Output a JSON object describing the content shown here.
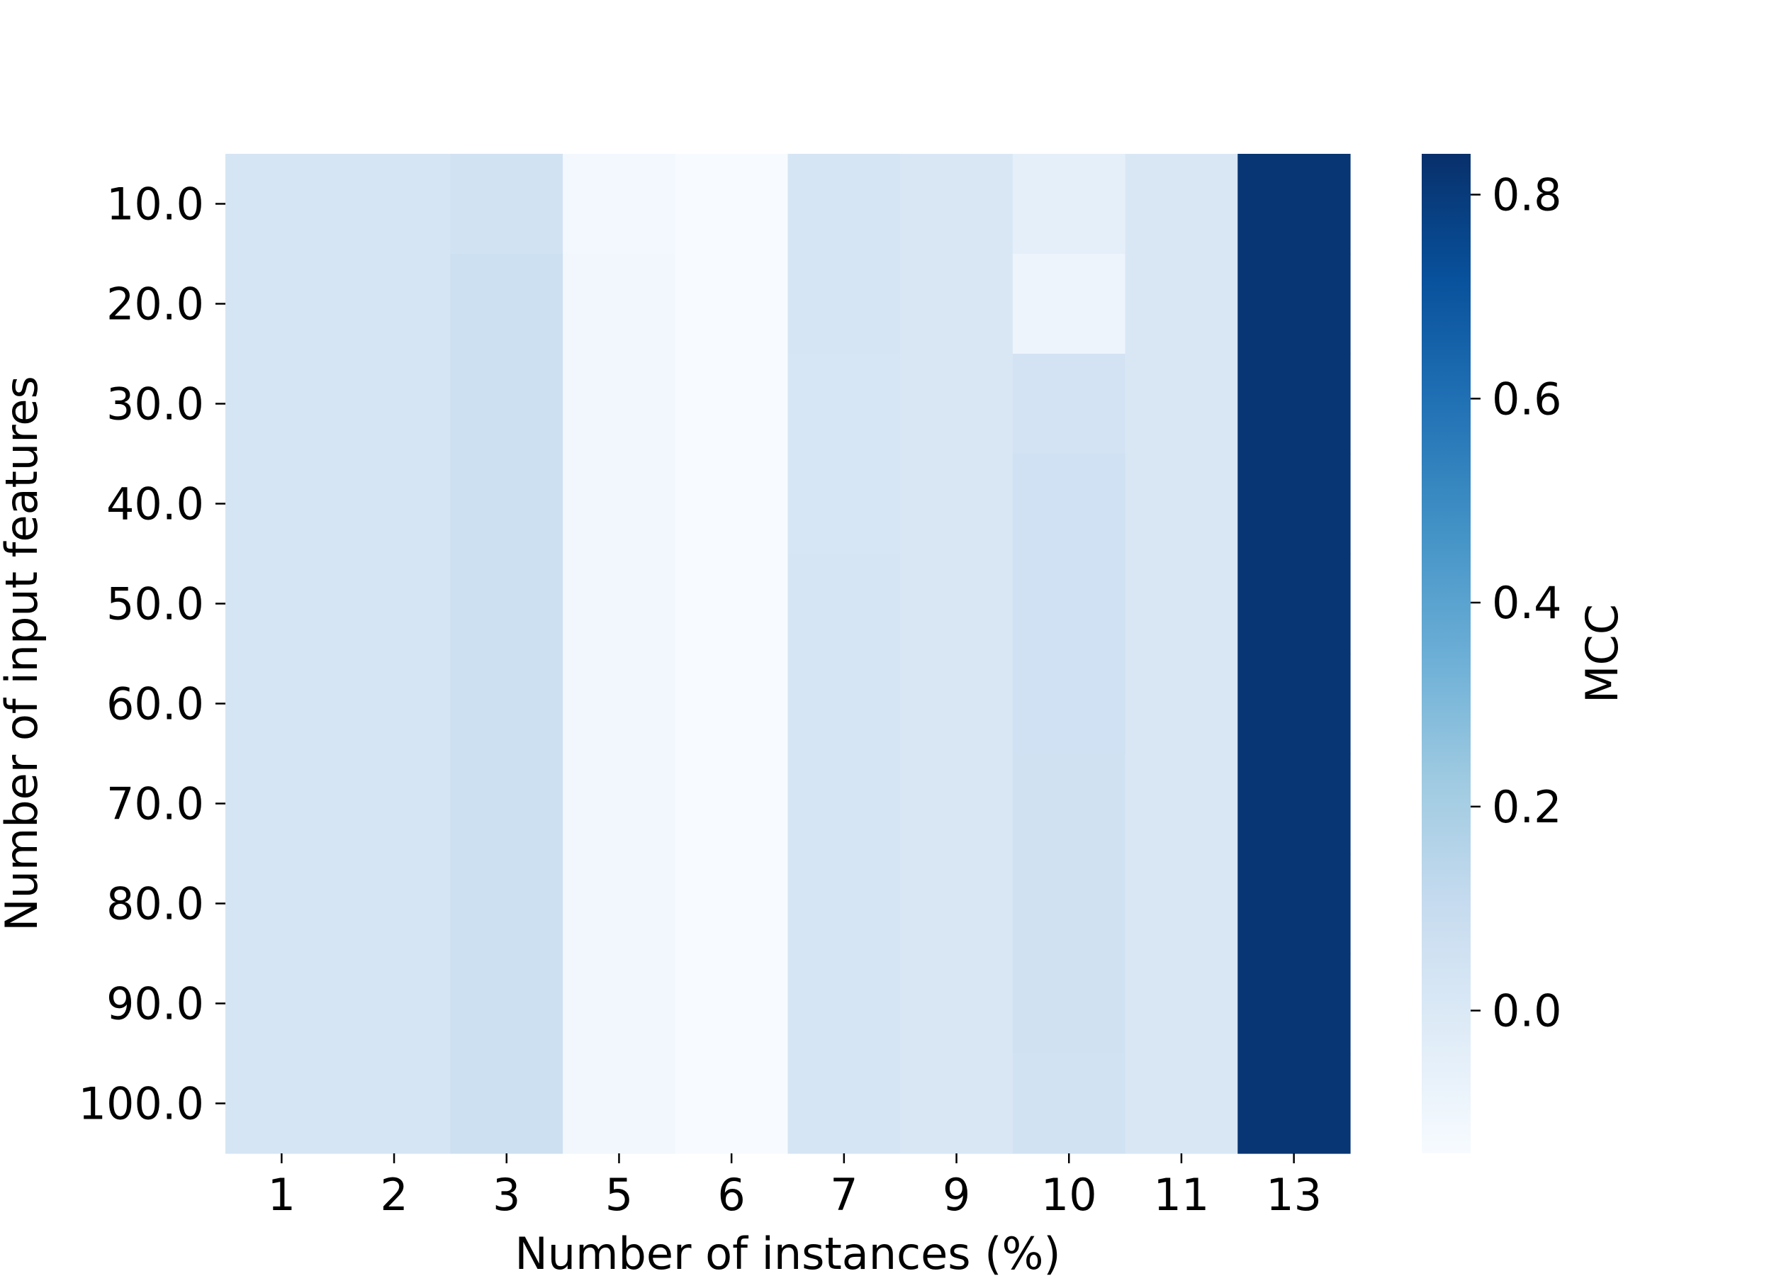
{
  "chart_data": {
    "type": "heatmap",
    "xlabel": "Number of instances (%)",
    "ylabel": "Number of input features",
    "x_categories": [
      "1",
      "2",
      "3",
      "5",
      "6",
      "7",
      "9",
      "10",
      "11",
      "13"
    ],
    "y_categories": [
      "10.0",
      "20.0",
      "30.0",
      "40.0",
      "50.0",
      "60.0",
      "70.0",
      "80.0",
      "90.0",
      "100.0"
    ],
    "values": [
      [
        0.03,
        0.03,
        0.05,
        -0.12,
        -0.14,
        0.03,
        0.01,
        -0.05,
        0.01,
        0.82
      ],
      [
        0.03,
        0.03,
        0.07,
        -0.11,
        -0.14,
        0.03,
        0.01,
        -0.09,
        0.01,
        0.82
      ],
      [
        0.03,
        0.03,
        0.07,
        -0.11,
        -0.14,
        0.02,
        0.01,
        0.04,
        0.01,
        0.82
      ],
      [
        0.03,
        0.03,
        0.07,
        -0.11,
        -0.14,
        0.02,
        0.01,
        0.06,
        0.01,
        0.82
      ],
      [
        0.03,
        0.03,
        0.07,
        -0.11,
        -0.14,
        0.03,
        0.01,
        0.06,
        0.01,
        0.82
      ],
      [
        0.03,
        0.03,
        0.07,
        -0.11,
        -0.14,
        0.03,
        0.01,
        0.06,
        0.01,
        0.82
      ],
      [
        0.03,
        0.03,
        0.07,
        -0.11,
        -0.14,
        0.03,
        0.01,
        0.055,
        0.01,
        0.82
      ],
      [
        0.03,
        0.03,
        0.07,
        -0.11,
        -0.14,
        0.03,
        0.01,
        0.055,
        0.01,
        0.82
      ],
      [
        0.03,
        0.03,
        0.07,
        -0.11,
        -0.14,
        0.03,
        0.01,
        0.055,
        0.01,
        0.82
      ],
      [
        0.03,
        0.03,
        0.07,
        -0.11,
        -0.14,
        0.03,
        0.01,
        0.05,
        0.01,
        0.82
      ]
    ],
    "colorbar": {
      "label": "MCC",
      "range": [
        -0.14,
        0.84
      ],
      "ticks": [
        "0.8",
        "0.6",
        "0.4",
        "0.2",
        "0.0"
      ],
      "tick_values": [
        0.8,
        0.6,
        0.4,
        0.2,
        0.0
      ],
      "colormap": "Blues",
      "colormap_stops": [
        "#f7fbff",
        "#deebf7",
        "#c6dbef",
        "#9ecae1",
        "#6baed6",
        "#4292c6",
        "#2171b5",
        "#08519c",
        "#08306b"
      ]
    }
  }
}
